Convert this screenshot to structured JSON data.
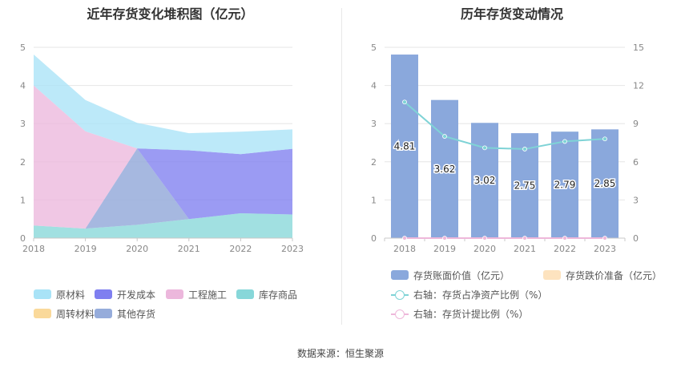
{
  "left_chart": {
    "title": "近年存货变化堆积图（亿元）",
    "legend": [
      {
        "label": "原材料",
        "color": "#a9e3f7"
      },
      {
        "label": "开发成本",
        "color": "#7f7ff0"
      },
      {
        "label": "工程施工",
        "color": "#ecb7dc"
      },
      {
        "label": "库存商品",
        "color": "#87d7d9"
      },
      {
        "label": "周转材料",
        "color": "#fad99a"
      },
      {
        "label": "其他存货",
        "color": "#96acdb"
      }
    ]
  },
  "right_chart": {
    "title": "历年存货变动情况",
    "legend": [
      {
        "label": "存货账面价值（亿元）",
        "color": "#8aa8dc"
      },
      {
        "label": "存货跌价准备（亿元）",
        "color": "#fde3bf"
      },
      {
        "label": "右轴：存货占净资产比例（%）",
        "color": "#7fd3d6"
      },
      {
        "label": "右轴：存货计提比例（%）",
        "color": "#eeb8da"
      }
    ]
  },
  "source": "数据来源：恒生聚源",
  "chart_data": [
    {
      "type": "area",
      "title": "近年存货变化堆积图（亿元）",
      "x": [
        "2018",
        "2019",
        "2020",
        "2021",
        "2022",
        "2023"
      ],
      "ylim": [
        0,
        5
      ],
      "yticks": [
        "0",
        "1",
        "2",
        "3",
        "4",
        "5"
      ],
      "stacked": true,
      "grid": true,
      "legend_position": "bottom",
      "series": [
        {
          "name": "其他存货",
          "values": [
            0,
            0,
            2.0,
            0,
            0,
            0
          ],
          "color": "#96acdb"
        },
        {
          "name": "库存商品",
          "values": [
            0.33,
            0.25,
            0.35,
            0.5,
            0.65,
            0.62
          ],
          "color": "#87d7d9"
        },
        {
          "name": "工程施工",
          "values": [
            3.67,
            2.55,
            0,
            0,
            0,
            0
          ],
          "color": "#ecb7dc"
        },
        {
          "name": "开发成本",
          "values": [
            0,
            0,
            0,
            1.8,
            1.55,
            1.72
          ],
          "color": "#7f7ff0"
        },
        {
          "name": "周转材料",
          "values": [
            0,
            0,
            0,
            0,
            0,
            0
          ],
          "color": "#fad99a"
        },
        {
          "name": "原材料",
          "values": [
            0.81,
            0.82,
            0.67,
            0.45,
            0.59,
            0.51
          ],
          "color": "#a9e3f7"
        }
      ]
    },
    {
      "type": "bar",
      "title": "历年存货变动情况",
      "categories": [
        "2018",
        "2019",
        "2020",
        "2021",
        "2022",
        "2023"
      ],
      "ylim": [
        0,
        5
      ],
      "yticks": [
        "0",
        "1",
        "2",
        "3",
        "4",
        "5"
      ],
      "y2lim": [
        0,
        15
      ],
      "y2ticks": [
        "0",
        "3",
        "6",
        "9",
        "12",
        "15"
      ],
      "grid": true,
      "legend_position": "bottom",
      "series": [
        {
          "name": "存货账面价值（亿元）",
          "axis": "left",
          "kind": "bar",
          "values": [
            4.81,
            3.62,
            3.02,
            2.75,
            2.79,
            2.85
          ],
          "labels": [
            "4.81",
            "3.62",
            "3.02",
            "2.75",
            "2.79",
            "2.85"
          ],
          "color": "#8aa8dc"
        },
        {
          "name": "存货跌价准备（亿元）",
          "axis": "left",
          "kind": "bar",
          "values": [
            0,
            0,
            0,
            0,
            0,
            0
          ],
          "color": "#fde3bf"
        },
        {
          "name": "右轴：存货占净资产比例（%）",
          "axis": "right",
          "kind": "line",
          "values": [
            10.7,
            8.0,
            7.1,
            7.0,
            7.6,
            7.8
          ],
          "color": "#7fd3d6"
        },
        {
          "name": "右轴：存货计提比例（%）",
          "axis": "right",
          "kind": "line",
          "values": [
            0,
            0,
            0,
            0,
            0,
            0
          ],
          "color": "#eeb8da"
        }
      ]
    }
  ]
}
